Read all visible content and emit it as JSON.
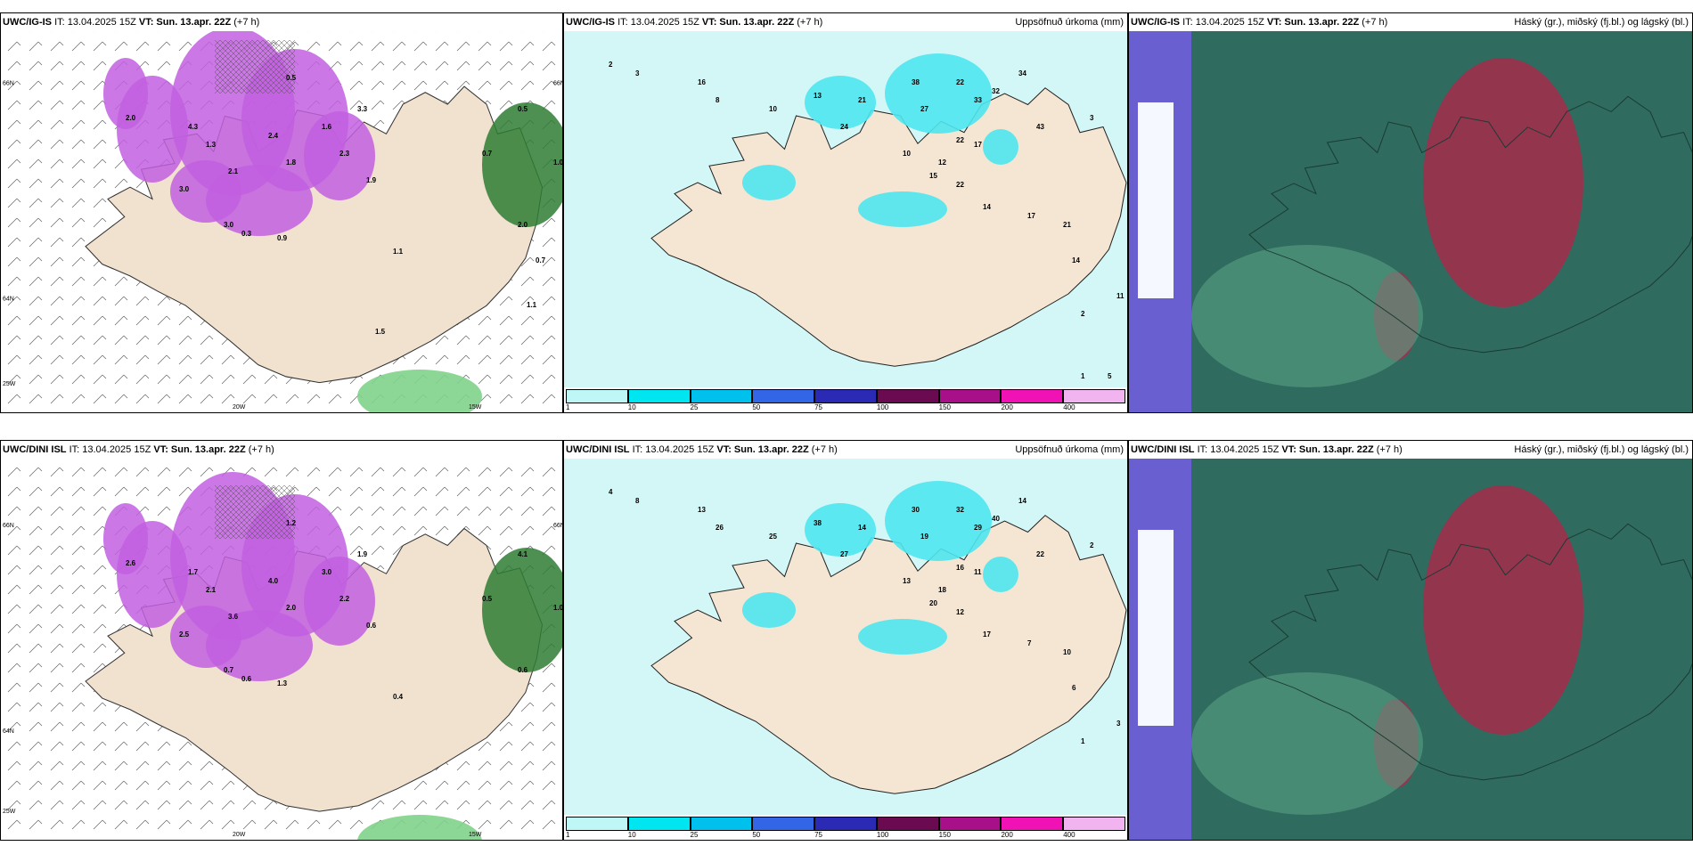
{
  "panels": [
    {
      "id": "tl",
      "model": "UWC/IG-IS",
      "it": "IT: 13.04.2025 15Z",
      "vt": "VT: Sun. 13.apr. 22Z",
      "lead": "(+7 h)",
      "right": "",
      "values": [
        "0.5",
        "2.0",
        "3.0",
        "2.1",
        "2.4",
        "1.6",
        "1.8",
        "1.3",
        "4.3",
        "3.3",
        "2.3",
        "1.9",
        "3.0",
        "0.7",
        "2.0",
        "0.5",
        "1.0",
        "0.3",
        "0.9",
        "1.1",
        "0.7",
        "1.1",
        "1.5"
      ],
      "axes": [
        "20W",
        "15W",
        "25W",
        "64N",
        "66N",
        "66N"
      ]
    },
    {
      "id": "tc",
      "model": "UWC/IG-IS",
      "it": "IT: 13.04.2025 15Z",
      "vt": "VT: Sun. 13.apr. 22Z",
      "lead": "(+7 h)",
      "right": "Uppsöfnuð úrkoma (mm)",
      "values": [
        "2",
        "3",
        "16",
        "8",
        "10",
        "13",
        "24",
        "21",
        "38",
        "27",
        "22",
        "33",
        "32",
        "34",
        "43",
        "22",
        "17",
        "12",
        "10",
        "15",
        "22",
        "14",
        "17",
        "21",
        "14",
        "3",
        "11",
        "2",
        "5",
        "1"
      ]
    },
    {
      "id": "tr",
      "model": "UWC/IG-IS",
      "it": "IT: 13.04.2025 15Z",
      "vt": "VT: Sun. 13.apr. 22Z",
      "lead": "(+7 h)",
      "right": "Háský (gr.), miðský (fj.bl.) og lágský (bl.)"
    },
    {
      "id": "bl",
      "model": "UWC/DINI ISL",
      "it": "IT: 13.04.2025 15Z",
      "vt": "VT: Sun. 13.apr. 22Z",
      "lead": "(+7 h)",
      "right": "",
      "values": [
        "1.2",
        "2.6",
        "2.5",
        "3.6",
        "4.0",
        "3.0",
        "2.0",
        "2.1",
        "1.7",
        "1.9",
        "2.2",
        "0.6",
        "0.7",
        "0.5",
        "0.6",
        "4.1",
        "1.0",
        "0.6",
        "1.3",
        "0.4"
      ],
      "axes": [
        "20W",
        "15W",
        "25W",
        "64N",
        "66N",
        "66N"
      ]
    },
    {
      "id": "bc",
      "model": "UWC/DINI ISL",
      "it": "IT: 13.04.2025 15Z",
      "vt": "VT: Sun. 13.apr. 22Z",
      "lead": "(+7 h)",
      "right": "Uppsöfnuð úrkoma (mm)",
      "values": [
        "4",
        "8",
        "13",
        "26",
        "25",
        "38",
        "27",
        "14",
        "30",
        "19",
        "32",
        "29",
        "40",
        "14",
        "22",
        "16",
        "11",
        "18",
        "13",
        "20",
        "12",
        "17",
        "7",
        "10",
        "6",
        "2",
        "3",
        "1"
      ]
    },
    {
      "id": "br",
      "model": "UWC/DINI ISL",
      "it": "IT: 13.04.2025 15Z",
      "vt": "VT: Sun. 13.apr. 22Z",
      "lead": "(+7 h)",
      "right": "Háský (gr.), miðský (fj.bl.) og lágský (bl.)"
    }
  ],
  "colorbar": {
    "labels": [
      "1",
      "10",
      "25",
      "50",
      "75",
      "100",
      "150",
      "200",
      "400"
    ],
    "colors": [
      "#bff7f7",
      "#00e6f0",
      "#00c0ee",
      "#3366e6",
      "#2a2ab4",
      "#6a0a50",
      "#a8108a",
      "#f012b4",
      "#f2b4f0"
    ]
  }
}
